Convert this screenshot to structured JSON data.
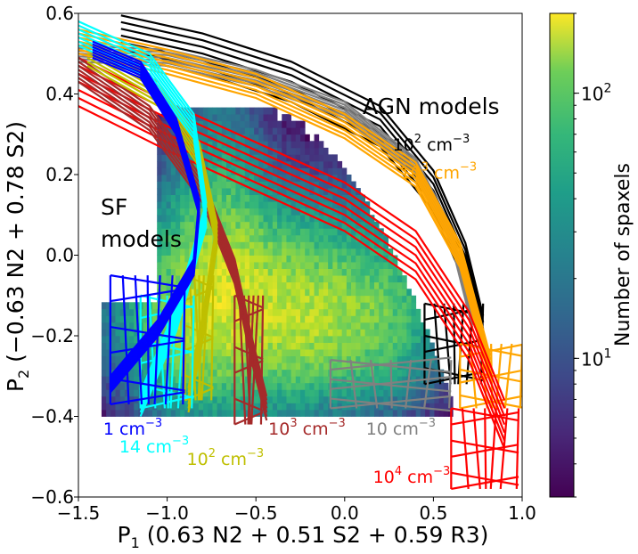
{
  "chart_data": {
    "type": "heatmap",
    "xlabel": "P₁ (0.63 N2 + 0.51 S2 + 0.59 R3)",
    "xlabel_main": "P",
    "xlabel_sub": "1",
    "xlabel_rest": " (0.63 N2 + 0.51 S2 + 0.59 R3)",
    "ylabel": "P₂ (−0.63 N2 + 0.78 S2)",
    "ylabel_main": "P",
    "ylabel_sub": "2",
    "ylabel_rest": " (−0.63 N2 + 0.78 S2)",
    "xlim": [
      -1.5,
      1.0
    ],
    "ylim": [
      -0.6,
      0.6
    ],
    "xticks": [
      -1.5,
      -1.0,
      -0.5,
      0.0,
      0.5,
      1.0
    ],
    "xtick_labels": [
      "−1.5",
      "−1.0",
      "−0.5",
      "0.0",
      "0.5",
      "1.0"
    ],
    "yticks": [
      -0.6,
      -0.4,
      -0.2,
      0.0,
      0.2,
      0.4,
      0.6
    ],
    "ytick_labels": [
      "−0.6",
      "−0.4",
      "−0.2",
      "0.0",
      "0.2",
      "0.4",
      "0.6"
    ],
    "colorbar": {
      "label": "Number of spaxels",
      "scale": "log",
      "range": [
        3,
        200
      ],
      "colormap": "viridis",
      "ticks": [
        {
          "value": 10,
          "base": "10",
          "exp": "1"
        },
        {
          "value": 100,
          "base": "10",
          "exp": "2"
        }
      ]
    },
    "annotations": {
      "agn_title": "AGN models",
      "sf_title_line1": "SF",
      "sf_title_line2": "models"
    },
    "density_labels": [
      {
        "text": "10² cm⁻³",
        "base": "10",
        "exp": "2",
        "unit": " cm",
        "unit_exp": "−3",
        "color": "#000000",
        "at": [
          0.27,
          0.26
        ]
      },
      {
        "text": "10³ cm⁻³",
        "base": "10",
        "exp": "3",
        "unit": " cm",
        "unit_exp": "−3",
        "color": "#ffa500",
        "at": [
          0.31,
          0.19
        ]
      },
      {
        "text": "1 cm⁻³",
        "base": "1",
        "exp": "",
        "unit": " cm",
        "unit_exp": "−3",
        "color": "#0000ff",
        "at": [
          -1.36,
          -0.445
        ]
      },
      {
        "text": "14 cm⁻³",
        "base": "14",
        "exp": "",
        "unit": " cm",
        "unit_exp": "−3",
        "color": "#00ffff",
        "at": [
          -1.27,
          -0.49
        ]
      },
      {
        "text": "10² cm⁻³",
        "base": "10",
        "exp": "2",
        "unit": " cm",
        "unit_exp": "−3",
        "color": "#bfbf00",
        "at": [
          -0.89,
          -0.52
        ]
      },
      {
        "text": "10³ cm⁻³",
        "base": "10",
        "exp": "3",
        "unit": " cm",
        "unit_exp": "−3",
        "color": "#a52a2a",
        "at": [
          -0.43,
          -0.445
        ]
      },
      {
        "text": "10 cm⁻³",
        "base": "10",
        "exp": "",
        "unit": " cm",
        "unit_exp": "−3",
        "color": "#808080",
        "at": [
          0.12,
          -0.445
        ]
      },
      {
        "text": "10⁴ cm⁻³",
        "base": "10",
        "exp": "4",
        "unit": " cm",
        "unit_exp": "−3",
        "color": "#ff0000",
        "at": [
          0.16,
          -0.565
        ]
      }
    ],
    "series": [
      {
        "color": "#000000",
        "spine": [
          [
            -1.26,
            0.545
          ],
          [
            -0.8,
            0.5
          ],
          [
            -0.3,
            0.43
          ],
          [
            0.2,
            0.32
          ],
          [
            0.5,
            0.16
          ],
          [
            0.68,
            -0.02
          ],
          [
            0.78,
            -0.2
          ]
        ],
        "width": 0.05,
        "grid": {
          "x0": 0.45,
          "x1": 0.78,
          "y0": -0.12,
          "y1": -0.32
        }
      },
      {
        "color": "#808080",
        "spine": [
          [
            -1.5,
            0.5
          ],
          [
            -1.0,
            0.49
          ],
          [
            -0.5,
            0.44
          ],
          [
            0.0,
            0.36
          ],
          [
            0.4,
            0.22
          ],
          [
            0.6,
            0.05
          ],
          [
            0.72,
            -0.16
          ]
        ],
        "width": 0.02,
        "grid": {
          "x0": -0.08,
          "x1": 0.6,
          "y0": -0.26,
          "y1": -0.38
        }
      },
      {
        "color": "#ffa500",
        "spine": [
          [
            -1.5,
            0.53
          ],
          [
            -1.0,
            0.48
          ],
          [
            -0.5,
            0.42
          ],
          [
            0.0,
            0.32
          ],
          [
            0.4,
            0.2
          ],
          [
            0.65,
            0.0
          ],
          [
            0.82,
            -0.28
          ]
        ],
        "width": 0.03,
        "grid": {
          "x0": 0.65,
          "x1": 1.0,
          "y0": -0.22,
          "y1": -0.38
        }
      },
      {
        "color": "#ff0000",
        "spine": [
          [
            -1.5,
            0.43
          ],
          [
            -1.0,
            0.32
          ],
          [
            -0.5,
            0.22
          ],
          [
            0.0,
            0.12
          ],
          [
            0.4,
            0.0
          ],
          [
            0.7,
            -0.2
          ],
          [
            0.9,
            -0.42
          ]
        ],
        "width": 0.06,
        "grid": {
          "x0": 0.6,
          "x1": 0.98,
          "y0": -0.38,
          "y1": -0.58
        }
      },
      {
        "color": "#a52a2a",
        "spine": [
          [
            -1.5,
            0.46
          ],
          [
            -1.1,
            0.34
          ],
          [
            -0.8,
            0.16
          ],
          [
            -0.62,
            -0.04
          ],
          [
            -0.52,
            -0.24
          ],
          [
            -0.44,
            -0.38
          ]
        ],
        "width": 0.03,
        "grid": {
          "x0": -0.62,
          "x1": -0.46,
          "y0": -0.1,
          "y1": -0.42
        }
      },
      {
        "color": "#bfbf00",
        "spine": [
          [
            -1.45,
            0.5
          ],
          [
            -1.05,
            0.4
          ],
          [
            -0.82,
            0.25
          ],
          [
            -0.72,
            0.05
          ],
          [
            -0.8,
            -0.18
          ],
          [
            -0.88,
            -0.36
          ]
        ],
        "width": 0.03,
        "grid": {
          "x0": -0.9,
          "x1": -0.74,
          "y0": -0.05,
          "y1": -0.36
        }
      },
      {
        "color": "#00ffff",
        "spine": [
          [
            -1.5,
            0.55
          ],
          [
            -1.1,
            0.47
          ],
          [
            -0.85,
            0.32
          ],
          [
            -0.78,
            0.1
          ],
          [
            -0.95,
            -0.16
          ],
          [
            -1.15,
            -0.37
          ]
        ],
        "width": 0.03,
        "grid": {
          "x0": -1.15,
          "x1": -0.85,
          "y0": -0.1,
          "y1": -0.38
        }
      },
      {
        "color": "#0000ff",
        "spine": [
          [
            -1.42,
            0.51
          ],
          [
            -1.15,
            0.46
          ],
          [
            -0.95,
            0.32
          ],
          [
            -0.82,
            0.12
          ],
          [
            -0.85,
            -0.03
          ],
          [
            -1.05,
            -0.18
          ],
          [
            -1.32,
            -0.32
          ]
        ],
        "width": 0.02,
        "grid": {
          "x0": -1.32,
          "x1": -0.9,
          "y0": -0.05,
          "y1": -0.37
        }
      }
    ],
    "density_blobs": [
      {
        "cx": -0.5,
        "cy": -0.12,
        "sx": 0.42,
        "sy": 0.14,
        "peak": 110
      },
      {
        "cx": -0.72,
        "cy": 0.0,
        "sx": 0.16,
        "sy": 0.2,
        "peak": 60
      },
      {
        "cx": -0.1,
        "cy": -0.18,
        "sx": 0.3,
        "sy": 0.1,
        "peak": 45
      },
      {
        "cx": 0.25,
        "cy": -0.12,
        "sx": 0.2,
        "sy": 0.14,
        "peak": 25
      },
      {
        "cx": -0.95,
        "cy": -0.22,
        "sx": 0.14,
        "sy": 0.1,
        "peak": 30
      }
    ]
  }
}
